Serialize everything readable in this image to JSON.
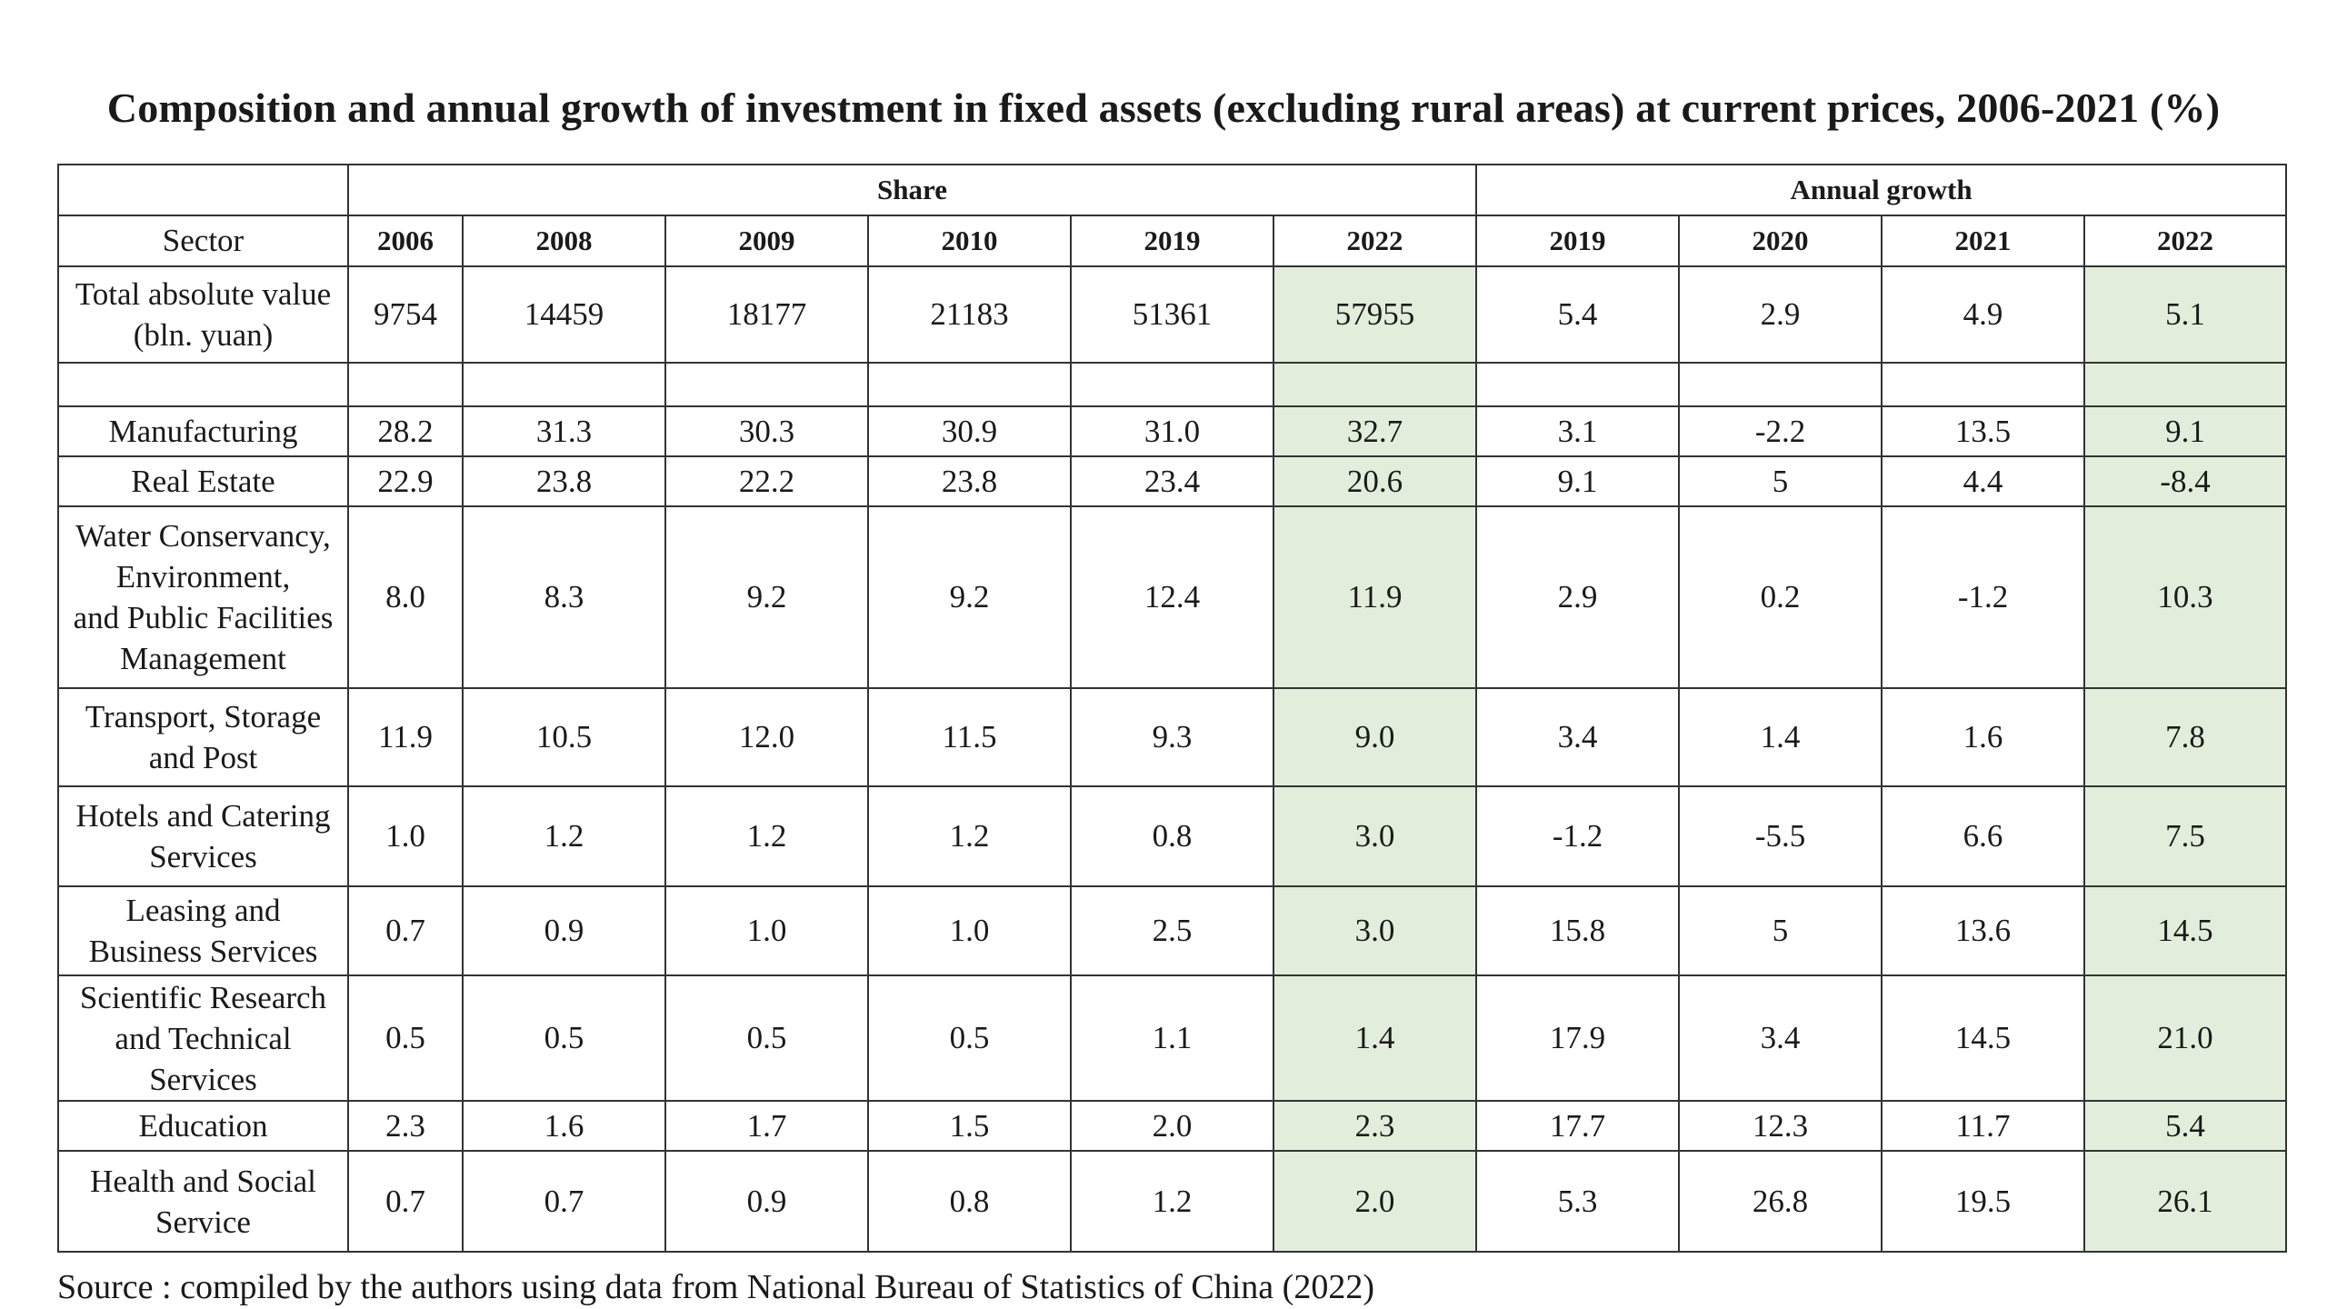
{
  "title": "Composition and annual growth of investment in fixed assets (excluding rural areas) at current prices, 2006-2021 (%)",
  "source": "Source : compiled by the authors using data from National Bureau of Statistics of China (2022)",
  "colors": {
    "highlight": "#e2eedb",
    "border": "#333333"
  },
  "chart_data": {
    "type": "table",
    "groups": [
      {
        "label": "Share",
        "years": [
          "2006",
          "2008",
          "2009",
          "2010",
          "2019",
          "2022"
        ]
      },
      {
        "label": "Annual growth",
        "years": [
          "2019",
          "2020",
          "2021",
          "2022"
        ]
      }
    ],
    "header": {
      "sector": "Sector"
    },
    "highlighted_columns": [
      "Share 2022",
      "Annual growth 2022"
    ],
    "rows": [
      {
        "sector": "Total absolute value (bln. yuan)",
        "lines": [
          "Total absolute value",
          "(bln. yuan)"
        ],
        "values": [
          "9754",
          "14459",
          "18177",
          "21183",
          "51361",
          "57955",
          "5.4",
          "2.9",
          "4.9",
          "5.1"
        ]
      },
      {
        "sector": "",
        "lines": [],
        "values": [
          "",
          "",
          "",
          "",
          "",
          "",
          "",
          "",
          "",
          ""
        ]
      },
      {
        "sector": "Manufacturing",
        "lines": [
          "Manufacturing"
        ],
        "values": [
          "28.2",
          "31.3",
          "30.3",
          "30.9",
          "31.0",
          "32.7",
          "3.1",
          "-2.2",
          "13.5",
          "9.1"
        ]
      },
      {
        "sector": "Real Estate",
        "lines": [
          "Real Estate"
        ],
        "values": [
          "22.9",
          "23.8",
          "22.2",
          "23.8",
          "23.4",
          "20.6",
          "9.1",
          "5",
          "4.4",
          "-8.4"
        ]
      },
      {
        "sector": "Water Conservancy, Environment, and Public Facilities Management",
        "lines": [
          "Water Conservancy,",
          "Environment,",
          "and Public Facilities",
          "Management"
        ],
        "values": [
          "8.0",
          "8.3",
          "9.2",
          "9.2",
          "12.4",
          "11.9",
          "2.9",
          "0.2",
          "-1.2",
          "10.3"
        ]
      },
      {
        "sector": "Transport, Storage and Post",
        "lines": [
          "Transport, Storage",
          "and Post"
        ],
        "values": [
          "11.9",
          "10.5",
          "12.0",
          "11.5",
          "9.3",
          "9.0",
          "3.4",
          "1.4",
          "1.6",
          "7.8"
        ]
      },
      {
        "sector": "Hotels and Catering Services",
        "lines": [
          "Hotels and Catering",
          "Services"
        ],
        "values": [
          "1.0",
          "1.2",
          "1.2",
          "1.2",
          "0.8",
          "3.0",
          "-1.2",
          "-5.5",
          "6.6",
          "7.5"
        ]
      },
      {
        "sector": "Leasing and Business Services",
        "lines": [
          "Leasing and",
          "Business Services"
        ],
        "values": [
          "0.7",
          "0.9",
          "1.0",
          "1.0",
          "2.5",
          "3.0",
          "15.8",
          "5",
          "13.6",
          "14.5"
        ]
      },
      {
        "sector": "Scientific Research and Technical Services",
        "lines": [
          "Scientific Research",
          "and Technical",
          "Services"
        ],
        "values": [
          "0.5",
          "0.5",
          "0.5",
          "0.5",
          "1.1",
          "1.4",
          "17.9",
          "3.4",
          "14.5",
          "21.0"
        ]
      },
      {
        "sector": "Education",
        "lines": [
          "Education"
        ],
        "values": [
          "2.3",
          "1.6",
          "1.7",
          "1.5",
          "2.0",
          "2.3",
          "17.7",
          "12.3",
          "11.7",
          "5.4"
        ]
      },
      {
        "sector": "Health and Social Service",
        "lines": [
          "Health and Social",
          "Service"
        ],
        "values": [
          "0.7",
          "0.7",
          "0.9",
          "0.8",
          "1.2",
          "2.0",
          "5.3",
          "26.8",
          "19.5",
          "26.1"
        ]
      }
    ]
  }
}
